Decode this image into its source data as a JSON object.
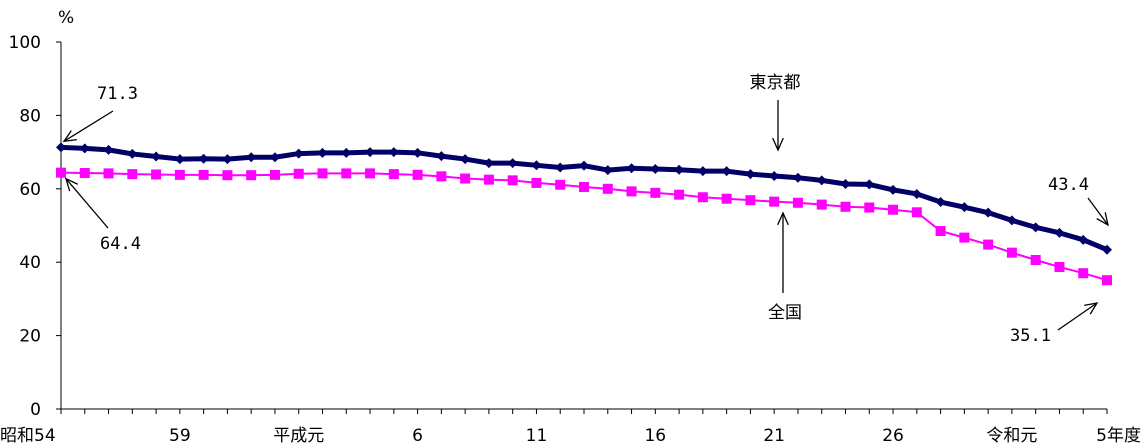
{
  "chart_data": {
    "type": "line",
    "ylabel": "%",
    "ylim": [
      0,
      100
    ],
    "yticks": [
      0,
      20,
      40,
      60,
      80,
      100
    ],
    "x_tick_labels": [
      {
        "index": 0,
        "label": "昭和54"
      },
      {
        "index": 5,
        "label": "59"
      },
      {
        "index": 10,
        "label": "平成元"
      },
      {
        "index": 15,
        "label": "6"
      },
      {
        "index": 20,
        "label": "11"
      },
      {
        "index": 25,
        "label": "16"
      },
      {
        "index": 30,
        "label": "21"
      },
      {
        "index": 35,
        "label": "26"
      },
      {
        "index": 40,
        "label": "令和元"
      },
      {
        "index": 44,
        "label": "5年度"
      }
    ],
    "series": [
      {
        "name": "東京都",
        "color": "#000066",
        "marker": "diamond",
        "values": [
          71.3,
          71.0,
          70.6,
          69.5,
          68.8,
          68.1,
          68.2,
          68.1,
          68.6,
          68.6,
          69.6,
          69.8,
          69.8,
          70.0,
          70.0,
          69.8,
          68.9,
          68.1,
          67.0,
          67.0,
          66.4,
          65.8,
          66.3,
          65.1,
          65.6,
          65.4,
          65.2,
          64.8,
          64.8,
          64.0,
          63.5,
          63.0,
          62.3,
          61.3,
          61.2,
          59.7,
          58.6,
          56.4,
          55.0,
          53.5,
          51.4,
          49.5,
          48.0,
          46.1,
          43.4
        ],
        "start_annotation": "71.3",
        "end_annotation": "43.4"
      },
      {
        "name": "全国",
        "color": "#ff00ff",
        "marker": "square",
        "values": [
          64.4,
          64.3,
          64.2,
          64.0,
          63.9,
          63.8,
          63.8,
          63.7,
          63.7,
          63.8,
          64.1,
          64.2,
          64.2,
          64.2,
          64.0,
          63.8,
          63.4,
          62.8,
          62.5,
          62.3,
          61.6,
          61.1,
          60.5,
          60.0,
          59.3,
          58.9,
          58.4,
          57.7,
          57.3,
          56.9,
          56.5,
          56.2,
          55.7,
          55.1,
          54.9,
          54.3,
          53.6,
          48.5,
          46.7,
          44.8,
          42.6,
          40.6,
          38.7,
          37.0,
          35.1
        ],
        "start_annotation": "64.4",
        "end_annotation": "35.1"
      }
    ]
  }
}
